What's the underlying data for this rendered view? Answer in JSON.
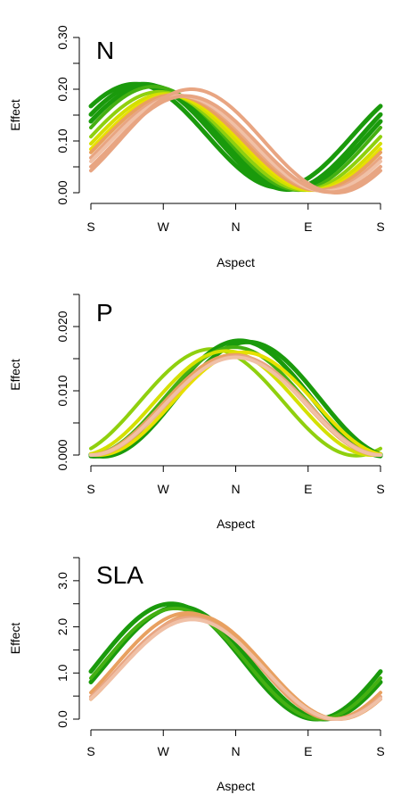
{
  "chart_data": [
    {
      "type": "line",
      "panel_label": "N",
      "xlabel": "Aspect",
      "ylabel": "Effect",
      "xticks": [
        "S",
        "W",
        "N",
        "E",
        "S"
      ],
      "ylim": [
        0,
        0.3
      ],
      "yticks": [
        0.0,
        0.1,
        0.2,
        0.3
      ],
      "ytick_labels": [
        "0.00",
        "0.10",
        "0.20",
        "0.30"
      ],
      "series_model": "y = offset + amp * cos(angle - peak_deg); angle 0 = S, 90 = W, 180 = N, 270 = E",
      "series": [
        {
          "color": "#1a9a0c",
          "peak_deg": 55,
          "offset": 0.11,
          "amp": 0.1,
          "width": 5
        },
        {
          "color": "#1a9a0c",
          "peak_deg": 65,
          "offset": 0.108,
          "amp": 0.102,
          "width": 5
        },
        {
          "color": "#1a9a0c",
          "peak_deg": 72,
          "offset": 0.107,
          "amp": 0.1,
          "width": 5
        },
        {
          "color": "#44b012",
          "peak_deg": 78,
          "offset": 0.105,
          "amp": 0.1,
          "width": 4
        },
        {
          "color": "#8fd00e",
          "peak_deg": 85,
          "offset": 0.1,
          "amp": 0.095,
          "width": 4
        },
        {
          "color": "#d4e000",
          "peak_deg": 92,
          "offset": 0.098,
          "amp": 0.093,
          "width": 4
        },
        {
          "color": "#e8e000",
          "peak_deg": 98,
          "offset": 0.097,
          "amp": 0.092,
          "width": 4
        },
        {
          "color": "#e8a060",
          "peak_deg": 102,
          "offset": 0.097,
          "amp": 0.092,
          "width": 4
        },
        {
          "color": "#e8a582",
          "peak_deg": 108,
          "offset": 0.096,
          "amp": 0.092,
          "width": 4
        },
        {
          "color": "#f0c0a6",
          "peak_deg": 112,
          "offset": 0.095,
          "amp": 0.092,
          "width": 4
        },
        {
          "color": "#e8a582",
          "peak_deg": 118,
          "offset": 0.094,
          "amp": 0.093,
          "width": 4
        },
        {
          "color": "#e8a582",
          "peak_deg": 125,
          "offset": 0.1,
          "amp": 0.1,
          "width": 4
        }
      ]
    },
    {
      "type": "line",
      "panel_label": "P",
      "xlabel": "Aspect",
      "ylabel": "Effect",
      "xticks": [
        "S",
        "W",
        "N",
        "E",
        "S"
      ],
      "ylim": [
        0,
        0.025
      ],
      "yticks": [
        0.0,
        0.01,
        0.02
      ],
      "ytick_labels": [
        "0.000",
        "0.010",
        "0.020"
      ],
      "series_model": "y = offset + amp * cos(angle - peak_deg); angle 0 = S, 90 = W, 180 = N, 270 = E",
      "series": [
        {
          "color": "#8fd00e",
          "peak_deg": 150,
          "offset": 0.0082,
          "amp": 0.0083,
          "width": 4
        },
        {
          "color": "#1a9a0c",
          "peak_deg": 185,
          "offset": 0.0088,
          "amp": 0.009,
          "width": 5
        },
        {
          "color": "#1a9a0c",
          "peak_deg": 195,
          "offset": 0.0087,
          "amp": 0.0089,
          "width": 5
        },
        {
          "color": "#44b012",
          "peak_deg": 178,
          "offset": 0.0084,
          "amp": 0.0084,
          "width": 4
        },
        {
          "color": "#d4e000",
          "peak_deg": 168,
          "offset": 0.0081,
          "amp": 0.0081,
          "width": 4
        },
        {
          "color": "#e8e000",
          "peak_deg": 190,
          "offset": 0.008,
          "amp": 0.008,
          "width": 4
        },
        {
          "color": "#e8a060",
          "peak_deg": 178,
          "offset": 0.0078,
          "amp": 0.0078,
          "width": 4
        },
        {
          "color": "#e8a582",
          "peak_deg": 182,
          "offset": 0.0077,
          "amp": 0.0077,
          "width": 4
        },
        {
          "color": "#f0c0a6",
          "peak_deg": 180,
          "offset": 0.0076,
          "amp": 0.0076,
          "width": 4
        }
      ]
    },
    {
      "type": "line",
      "panel_label": "SLA",
      "xlabel": "Aspect",
      "ylabel": "Effect",
      "xticks": [
        "S",
        "W",
        "N",
        "E",
        "S"
      ],
      "ylim": [
        0,
        3.5
      ],
      "yticks": [
        0.0,
        1.0,
        2.0,
        3.0
      ],
      "ytick_labels": [
        "0.0",
        "1.0",
        "2.0",
        "3.0"
      ],
      "series_model": "y = offset + amp * cos(angle - peak_deg); angle 0 = S, 90 = W, 180 = N, 270 = E",
      "series": [
        {
          "color": "#1a9a0c",
          "peak_deg": 100,
          "offset": 1.25,
          "amp": 1.25,
          "width": 5
        },
        {
          "color": "#1a9a0c",
          "peak_deg": 110,
          "offset": 1.22,
          "amp": 1.22,
          "width": 5
        },
        {
          "color": "#44b012",
          "peak_deg": 105,
          "offset": 1.2,
          "amp": 1.2,
          "width": 4
        },
        {
          "color": "#e8a060",
          "peak_deg": 120,
          "offset": 1.15,
          "amp": 1.15,
          "width": 4
        },
        {
          "color": "#e8a060",
          "peak_deg": 128,
          "offset": 1.13,
          "amp": 1.13,
          "width": 4
        },
        {
          "color": "#e8a582",
          "peak_deg": 124,
          "offset": 1.1,
          "amp": 1.1,
          "width": 4
        },
        {
          "color": "#f0c0a6",
          "peak_deg": 126,
          "offset": 1.08,
          "amp": 1.08,
          "width": 4
        }
      ]
    }
  ]
}
